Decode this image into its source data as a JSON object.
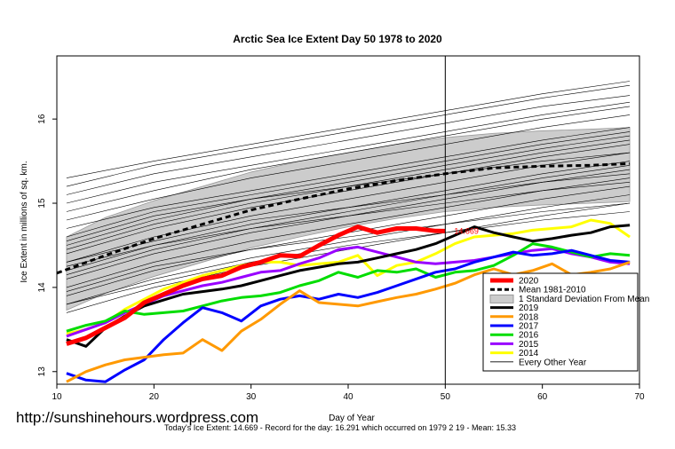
{
  "chart_data": {
    "type": "line",
    "title": "Arctic Sea Ice Extent Day 50 1978 to 2020",
    "xlabel": "Day of Year",
    "ylabel": "Ice Extent in millions of sq. km.",
    "xlim": [
      10,
      70
    ],
    "ylim": [
      12.85,
      16.75
    ],
    "x_ticks": [
      10,
      20,
      30,
      40,
      50,
      60,
      70
    ],
    "y_ticks": [
      13,
      14,
      15,
      16
    ],
    "grid": false,
    "vline_x": 50,
    "legend_placement": "bottom-right",
    "annotation": "14.669",
    "annotation_x": 50,
    "annotation_y": 14.669,
    "footer": "Today's Ice Extent: 14.669  - Record for the day: 16.291 which occurred on 1979 2 19  - Mean: 15.33",
    "watermark": "http://sunshinehours.wordpress.com",
    "colors": {
      "y2020": "#ff0000",
      "mean": "#000000",
      "band": "#cccccc",
      "y2019": "#000000",
      "y2018": "#ff9900",
      "y2017": "#0000ff",
      "y2016": "#00dd00",
      "y2015": "#9900ff",
      "y2014": "#ffff00",
      "other": "#000000"
    },
    "legend": [
      {
        "label": "2020",
        "key": "y2020",
        "style": "thick"
      },
      {
        "label": "Mean 1981-2010",
        "key": "mean",
        "style": "dashed"
      },
      {
        "label": "1 Standard Deviation From Mean",
        "key": "band",
        "style": "box"
      },
      {
        "label": "2019",
        "key": "y2019",
        "style": "thick"
      },
      {
        "label": "2018",
        "key": "y2018",
        "style": "thick"
      },
      {
        "label": "2017",
        "key": "y2017",
        "style": "thick"
      },
      {
        "label": "2016",
        "key": "y2016",
        "style": "thick"
      },
      {
        "label": "2015",
        "key": "y2015",
        "style": "thick"
      },
      {
        "label": "2014",
        "key": "y2014",
        "style": "thick"
      },
      {
        "label": "Every Other Year",
        "key": "other",
        "style": "thin"
      }
    ],
    "mean_x": [
      10,
      15,
      20,
      25,
      30,
      35,
      40,
      45,
      50,
      55,
      60,
      65,
      69
    ],
    "mean_y": [
      14.17,
      14.38,
      14.58,
      14.75,
      14.92,
      15.05,
      15.17,
      15.27,
      15.35,
      15.42,
      15.44,
      15.45,
      15.47
    ],
    "sd_band_x": [
      11,
      15,
      20,
      25,
      30,
      35,
      40,
      45,
      50,
      55,
      60,
      65,
      69
    ],
    "sd_band_low": [
      13.73,
      13.93,
      14.13,
      14.3,
      14.47,
      14.6,
      14.72,
      14.82,
      14.9,
      14.95,
      14.98,
      15.0,
      15.02
    ],
    "sd_band_high": [
      14.6,
      14.83,
      15.03,
      15.2,
      15.37,
      15.5,
      15.6,
      15.7,
      15.78,
      15.83,
      15.86,
      15.88,
      15.9
    ],
    "series": [
      {
        "name": "2020",
        "key": "y2020",
        "x": [
          11,
          13,
          15,
          17,
          19,
          21,
          23,
          25,
          27,
          29,
          31,
          33,
          35,
          37,
          39,
          41,
          43,
          45,
          47,
          49,
          50
        ],
        "y": [
          13.33,
          13.4,
          13.52,
          13.64,
          13.82,
          13.92,
          14.02,
          14.1,
          14.14,
          14.24,
          14.3,
          14.38,
          14.37,
          14.5,
          14.62,
          14.72,
          14.65,
          14.7,
          14.7,
          14.67,
          14.669
        ]
      },
      {
        "name": "2019",
        "key": "y2019",
        "x": [
          11,
          13,
          15,
          17,
          19,
          21,
          23,
          25,
          27,
          29,
          31,
          33,
          35,
          37,
          39,
          41,
          43,
          45,
          47,
          49,
          51,
          53,
          55,
          57,
          59,
          61,
          63,
          65,
          67,
          69
        ],
        "y": [
          13.38,
          13.3,
          13.52,
          13.66,
          13.78,
          13.85,
          13.92,
          13.95,
          13.98,
          14.02,
          14.08,
          14.14,
          14.2,
          14.24,
          14.28,
          14.3,
          14.35,
          14.4,
          14.45,
          14.52,
          14.62,
          14.72,
          14.65,
          14.6,
          14.55,
          14.58,
          14.62,
          14.65,
          14.72,
          14.74
        ]
      },
      {
        "name": "2018",
        "key": "y2018",
        "x": [
          11,
          13,
          15,
          17,
          19,
          21,
          23,
          25,
          27,
          29,
          31,
          33,
          35,
          37,
          39,
          41,
          43,
          45,
          47,
          49,
          51,
          53,
          55,
          57,
          59,
          61,
          63,
          65,
          67,
          69
        ],
        "y": [
          12.88,
          13.0,
          13.08,
          13.14,
          13.17,
          13.2,
          13.22,
          13.38,
          13.25,
          13.48,
          13.62,
          13.8,
          13.96,
          13.82,
          13.8,
          13.78,
          13.83,
          13.88,
          13.92,
          13.98,
          14.05,
          14.15,
          14.22,
          14.15,
          14.2,
          14.28,
          14.15,
          14.18,
          14.22,
          14.3
        ]
      },
      {
        "name": "2017",
        "key": "y2017",
        "x": [
          11,
          13,
          15,
          17,
          19,
          21,
          23,
          25,
          27,
          29,
          31,
          33,
          35,
          37,
          39,
          41,
          43,
          45,
          47,
          49,
          51,
          53,
          55,
          57,
          59,
          61,
          63,
          65,
          67,
          69
        ],
        "y": [
          12.98,
          12.9,
          12.88,
          13.02,
          13.14,
          13.38,
          13.58,
          13.76,
          13.7,
          13.6,
          13.78,
          13.86,
          13.9,
          13.86,
          13.92,
          13.88,
          13.94,
          14.02,
          14.1,
          14.18,
          14.22,
          14.3,
          14.36,
          14.42,
          14.38,
          14.4,
          14.44,
          14.38,
          14.32,
          14.3
        ]
      },
      {
        "name": "2016",
        "key": "y2016",
        "x": [
          11,
          13,
          15,
          17,
          19,
          21,
          23,
          25,
          27,
          29,
          31,
          33,
          35,
          37,
          39,
          41,
          43,
          45,
          47,
          49,
          51,
          53,
          55,
          57,
          59,
          61,
          63,
          65,
          67,
          69
        ],
        "y": [
          13.48,
          13.55,
          13.6,
          13.72,
          13.68,
          13.7,
          13.72,
          13.78,
          13.84,
          13.88,
          13.9,
          13.94,
          14.02,
          14.08,
          14.18,
          14.12,
          14.2,
          14.18,
          14.22,
          14.12,
          14.18,
          14.2,
          14.26,
          14.38,
          14.52,
          14.48,
          14.42,
          14.36,
          14.4,
          14.38
        ]
      },
      {
        "name": "2015",
        "key": "y2015",
        "x": [
          11,
          13,
          15,
          17,
          19,
          21,
          23,
          25,
          27,
          29,
          31,
          33,
          35,
          37,
          39,
          41,
          43,
          45,
          47,
          49,
          51,
          53,
          55,
          57,
          59,
          61,
          63,
          65,
          67,
          69
        ],
        "y": [
          13.42,
          13.5,
          13.58,
          13.7,
          13.8,
          13.9,
          13.96,
          14.02,
          14.06,
          14.12,
          14.18,
          14.2,
          14.28,
          14.35,
          14.45,
          14.48,
          14.42,
          14.36,
          14.3,
          14.28,
          14.3,
          14.32,
          14.36,
          14.4,
          14.44,
          14.46,
          14.4,
          14.36,
          14.3,
          14.28
        ]
      },
      {
        "name": "2014",
        "key": "y2014",
        "x": [
          11,
          13,
          15,
          17,
          19,
          21,
          23,
          25,
          27,
          29,
          31,
          33,
          35,
          37,
          39,
          41,
          43,
          45,
          47,
          49,
          51,
          53,
          55,
          57,
          59,
          61,
          63,
          65,
          67,
          69
        ],
        "y": [
          13.45,
          13.5,
          13.58,
          13.74,
          13.86,
          13.98,
          14.06,
          14.14,
          14.2,
          14.26,
          14.3,
          14.3,
          14.26,
          14.28,
          14.3,
          14.38,
          14.14,
          14.26,
          14.3,
          14.4,
          14.52,
          14.6,
          14.62,
          14.64,
          14.68,
          14.7,
          14.72,
          14.8,
          14.76,
          14.6
        ]
      }
    ],
    "other_years": [
      {
        "x": [
          11,
          20,
          30,
          40,
          50,
          60,
          69
        ],
        "y": [
          14.7,
          14.95,
          15.15,
          15.35,
          15.55,
          15.75,
          15.9
        ]
      },
      {
        "x": [
          11,
          20,
          30,
          40,
          50,
          60,
          69
        ],
        "y": [
          14.5,
          14.8,
          15.05,
          15.25,
          15.45,
          15.65,
          15.8
        ]
      },
      {
        "x": [
          11,
          20,
          30,
          40,
          50,
          60,
          69
        ],
        "y": [
          14.3,
          14.6,
          14.85,
          15.05,
          15.25,
          15.45,
          15.6
        ]
      },
      {
        "x": [
          11,
          20,
          30,
          40,
          50,
          60,
          69
        ],
        "y": [
          14.1,
          14.4,
          14.65,
          14.85,
          15.05,
          15.25,
          15.4
        ]
      },
      {
        "x": [
          11,
          20,
          30,
          40,
          50,
          60,
          69
        ],
        "y": [
          13.9,
          14.2,
          14.45,
          14.65,
          14.85,
          15.05,
          15.2
        ]
      },
      {
        "x": [
          11,
          20,
          30,
          40,
          50,
          60,
          69
        ],
        "y": [
          13.7,
          14.0,
          14.25,
          14.45,
          14.65,
          14.85,
          15.0
        ]
      },
      {
        "x": [
          11,
          20,
          30,
          40,
          50,
          60,
          69
        ],
        "y": [
          15.3,
          15.5,
          15.7,
          15.9,
          16.1,
          16.3,
          16.45
        ]
      },
      {
        "x": [
          11,
          20,
          30,
          40,
          50,
          60,
          69
        ],
        "y": [
          15.1,
          15.35,
          15.55,
          15.75,
          15.95,
          16.15,
          16.28
        ]
      },
      {
        "x": [
          11,
          20,
          30,
          40,
          50,
          60,
          69
        ],
        "y": [
          14.9,
          15.15,
          15.4,
          15.6,
          15.8,
          16.0,
          16.15
        ]
      },
      {
        "x": [
          11,
          20,
          30,
          40,
          50,
          60,
          69
        ],
        "y": [
          14.2,
          14.5,
          14.75,
          14.95,
          15.15,
          15.35,
          15.5
        ]
      },
      {
        "x": [
          11,
          20,
          30,
          40,
          50,
          60,
          69
        ],
        "y": [
          14.6,
          14.9,
          15.1,
          15.3,
          15.5,
          15.7,
          15.85
        ]
      },
      {
        "x": [
          11,
          20,
          30,
          40,
          50,
          60,
          69
        ],
        "y": [
          13.8,
          14.1,
          14.35,
          14.55,
          14.75,
          14.95,
          15.1
        ]
      },
      {
        "x": [
          11,
          20,
          30,
          40,
          50,
          60,
          69
        ],
        "y": [
          14.4,
          14.7,
          14.95,
          15.15,
          15.35,
          15.55,
          15.7
        ]
      },
      {
        "x": [
          11,
          20,
          30,
          40,
          50,
          60,
          69
        ],
        "y": [
          15.0,
          15.25,
          15.45,
          15.65,
          15.85,
          16.05,
          16.2
        ]
      },
      {
        "x": [
          11,
          20,
          30,
          40,
          50,
          60,
          69
        ],
        "y": [
          14.0,
          14.3,
          14.55,
          14.75,
          14.95,
          15.15,
          15.3
        ]
      },
      {
        "x": [
          11,
          20,
          30,
          40,
          50,
          60,
          69
        ],
        "y": [
          13.95,
          14.25,
          14.45,
          14.6,
          14.75,
          14.9,
          15.0
        ]
      },
      {
        "x": [
          11,
          20,
          30,
          40,
          50,
          60,
          69
        ],
        "y": [
          14.3,
          14.55,
          14.8,
          14.95,
          15.1,
          15.25,
          15.35
        ]
      },
      {
        "x": [
          11,
          20,
          30,
          40,
          50,
          60,
          69
        ],
        "y": [
          14.8,
          15.05,
          15.3,
          15.5,
          15.7,
          15.9,
          16.05
        ]
      },
      {
        "x": [
          11,
          20,
          30,
          40,
          50,
          60,
          69
        ],
        "y": [
          14.55,
          14.85,
          15.05,
          15.2,
          15.35,
          15.5,
          15.6
        ]
      },
      {
        "x": [
          11,
          20,
          30,
          40,
          50,
          60,
          69
        ],
        "y": [
          13.8,
          14.05,
          14.3,
          14.5,
          14.65,
          14.8,
          14.9
        ]
      },
      {
        "x": [
          11,
          20,
          30,
          40,
          50,
          60,
          69
        ],
        "y": [
          14.15,
          14.45,
          14.7,
          14.9,
          15.1,
          15.3,
          15.45
        ]
      },
      {
        "x": [
          11,
          20,
          30,
          40,
          50,
          60,
          69
        ],
        "y": [
          14.45,
          14.75,
          15.0,
          15.2,
          15.4,
          15.6,
          15.75
        ]
      },
      {
        "x": [
          11,
          20,
          30,
          40,
          50,
          60,
          69
        ],
        "y": [
          14.25,
          14.5,
          14.7,
          14.85,
          15.0,
          15.15,
          15.25
        ]
      },
      {
        "x": [
          11,
          20,
          30,
          40,
          50,
          60,
          69
        ],
        "y": [
          15.2,
          15.45,
          15.65,
          15.85,
          16.05,
          16.25,
          16.4
        ]
      }
    ]
  }
}
